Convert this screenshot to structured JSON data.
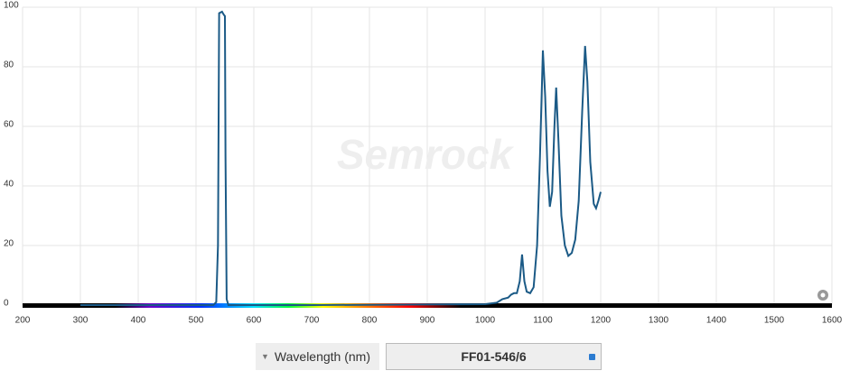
{
  "chart_data": {
    "type": "line",
    "watermark": "Semrock",
    "xlabel": "Wavelength (nm)",
    "xlim": [
      200,
      1600
    ],
    "xticks": [
      200,
      300,
      400,
      500,
      600,
      700,
      800,
      900,
      1000,
      1100,
      1200,
      1300,
      1400,
      1500,
      1600
    ],
    "ylim": [
      0,
      100
    ],
    "yticks": [
      0,
      20,
      40,
      60,
      80,
      100
    ],
    "grid": true,
    "x": [
      300,
      500,
      530,
      535,
      538,
      540,
      545,
      548,
      550,
      551,
      553,
      556,
      700,
      1000,
      1020,
      1030,
      1040,
      1045,
      1050,
      1055,
      1060,
      1064,
      1068,
      1072,
      1078,
      1084,
      1090,
      1095,
      1100,
      1104,
      1108,
      1112,
      1116,
      1120,
      1123,
      1127,
      1132,
      1138,
      1144,
      1150,
      1156,
      1162,
      1168,
      1173,
      1177,
      1182,
      1188,
      1192,
      1196,
      1200
    ],
    "series": [
      {
        "name": "FF01-546/6",
        "color": "#1b5a86",
        "values": [
          0,
          0,
          0,
          1,
          20,
          98,
          98.5,
          97.5,
          97,
          50,
          2,
          0,
          0,
          0.3,
          0.8,
          2,
          2.5,
          3.5,
          4,
          4,
          8,
          17,
          8,
          4.5,
          4,
          6,
          20,
          50,
          85.5,
          70,
          45,
          33,
          38,
          60,
          73,
          55,
          30,
          20,
          16.5,
          17.5,
          22,
          35,
          65,
          87,
          75,
          48,
          34,
          32.5,
          35,
          38
        ]
      }
    ]
  }
}
